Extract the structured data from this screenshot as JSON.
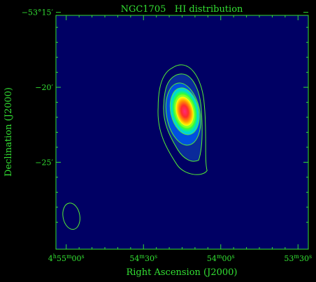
{
  "chart_data": {
    "type": "heatmap",
    "title": "NGC1705   HI distribution",
    "xlabel": "Right Ascension (J2000)",
    "ylabel": "Declination (J2000)",
    "x_ticks": [
      {
        "ra_s": 300,
        "h": "4",
        "hs": "h",
        "m": "55",
        "ms": "m",
        "s": "00",
        "ss": "s"
      },
      {
        "ra_s": 270,
        "h": "",
        "hs": "",
        "m": "54",
        "ms": "m",
        "s": "30",
        "ss": "s"
      },
      {
        "ra_s": 240,
        "h": "",
        "hs": "",
        "m": "54",
        "ms": "m",
        "s": "00",
        "ss": "s"
      },
      {
        "ra_s": 210,
        "h": "",
        "hs": "",
        "m": "53",
        "ms": "m",
        "s": "30",
        "ss": "s"
      }
    ],
    "y_ticks": [
      {
        "dec_arcmin": -15,
        "label": "−53°15′"
      },
      {
        "dec_arcmin": -20,
        "label": "−20′"
      },
      {
        "dec_arcmin": -25,
        "label": "−25′"
      }
    ],
    "xlim_ra_s": [
      304,
      206
    ],
    "ylim_dec_arcmin": [
      -15.2,
      -30.8
    ],
    "grid": false,
    "source_center": {
      "ra_s": 254,
      "dec_arcmin": -21.6
    },
    "beam": {
      "ra_s": 298,
      "dec_arcmin": -28.6
    },
    "colors": {
      "background": "#000000",
      "field": "#000064",
      "axes": "#33e033",
      "contour": "#55ee33"
    }
  }
}
